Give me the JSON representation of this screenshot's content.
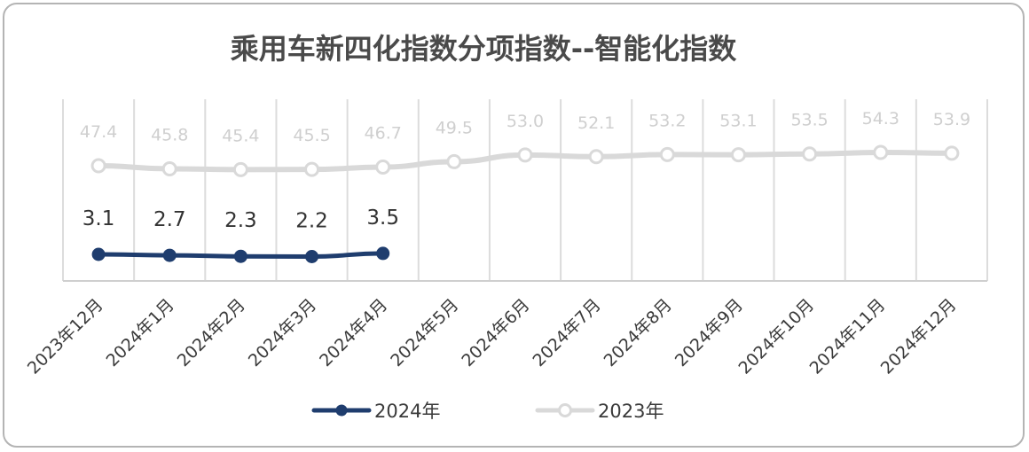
{
  "chart_data": {
    "type": "line",
    "title": "乘用车新四化指数分项指数--智能化指数",
    "categories": [
      "2023年12月",
      "2024年1月",
      "2024年2月",
      "2024年3月",
      "2024年4月",
      "2024年5月",
      "2024年6月",
      "2024年7月",
      "2024年8月",
      "2024年9月",
      "2024年10月",
      "2024年11月",
      "2024年12月"
    ],
    "series": [
      {
        "name": "2024年",
        "color": "#1f3d6e",
        "values": [
          3.1,
          2.7,
          2.3,
          2.2,
          3.5,
          null,
          null,
          null,
          null,
          null,
          null,
          null,
          null
        ]
      },
      {
        "name": "2023年",
        "color": "#d9d9d9",
        "values": [
          47.4,
          45.8,
          45.4,
          45.5,
          46.7,
          49.5,
          53.0,
          52.1,
          53.2,
          53.1,
          53.5,
          54.3,
          53.9
        ]
      }
    ],
    "data_labels": {
      "2024年": [
        "3.1",
        "2.7",
        "2.3",
        "2.2",
        "3.5"
      ],
      "2023年": [
        "47.4",
        "45.8",
        "45.4",
        "45.5",
        "46.7",
        "49.5",
        "53.0",
        "52.1",
        "53.2",
        "53.1",
        "53.5",
        "54.3",
        "53.9"
      ]
    },
    "legend_position": "bottom",
    "grid": "vertical",
    "y_axis": "broken (hidden)"
  }
}
